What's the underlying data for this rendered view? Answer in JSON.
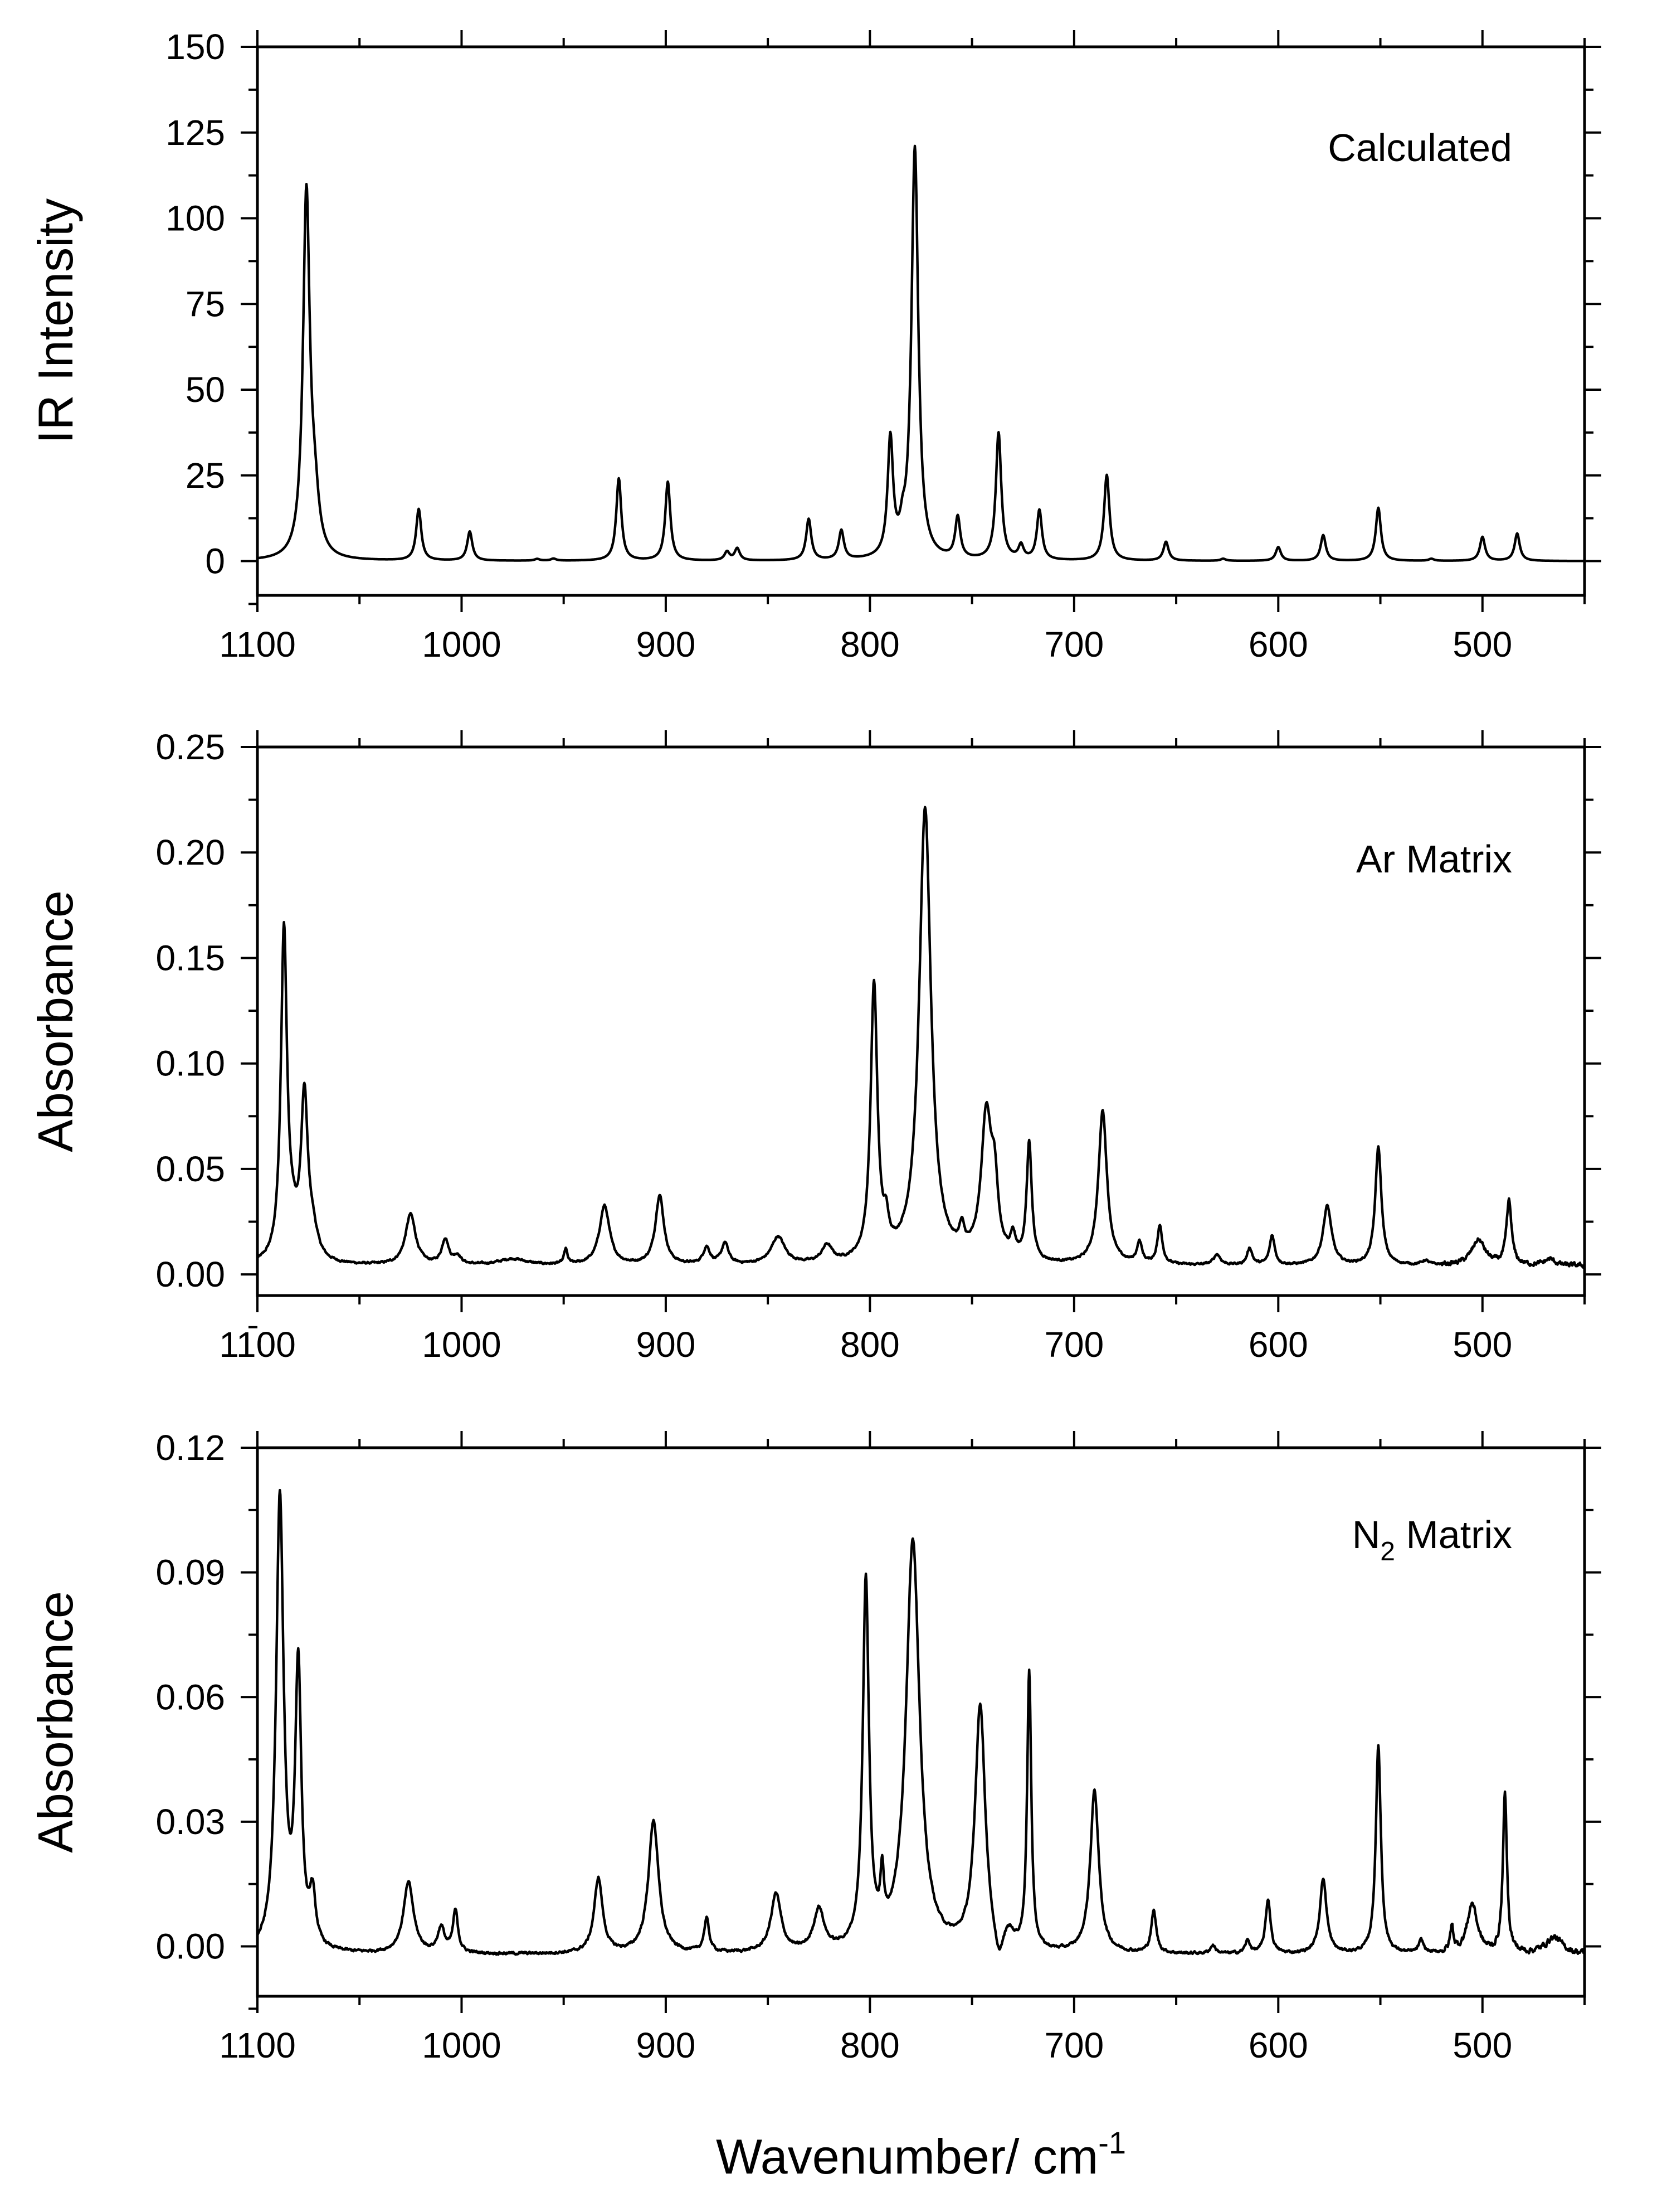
{
  "chart_data": [
    {
      "type": "line",
      "panel_label": "Calculated",
      "xlabel": "",
      "ylabel": "IR Intensity",
      "xlim": [
        1100,
        450
      ],
      "ylim": [
        -10,
        150
      ],
      "x_ticks": [
        1100,
        1000,
        900,
        800,
        700,
        600,
        500
      ],
      "x_tick_labels": [
        "1100",
        "1000",
        "900",
        "800",
        "700",
        "600",
        "500"
      ],
      "y_ticks": [
        0,
        25,
        50,
        75,
        100,
        125,
        150
      ],
      "y_tick_labels": [
        "0",
        "25",
        "50",
        "75",
        "100",
        "125",
        "150"
      ],
      "baseline": 0,
      "noise": 0,
      "peaks": [
        {
          "x": 1076,
          "y": 106,
          "w": 2.0
        },
        {
          "x": 1072,
          "y": 14,
          "w": 2.5
        },
        {
          "x": 1021,
          "y": 15,
          "w": 1.5
        },
        {
          "x": 996,
          "y": 8.5,
          "w": 1.5
        },
        {
          "x": 963,
          "y": 0.5,
          "w": 1.5
        },
        {
          "x": 955,
          "y": 0.6,
          "w": 1.5
        },
        {
          "x": 923,
          "y": 24,
          "w": 1.5
        },
        {
          "x": 899,
          "y": 23,
          "w": 1.5
        },
        {
          "x": 870,
          "y": 2.5,
          "w": 1.5
        },
        {
          "x": 865,
          "y": 3.5,
          "w": 1.5
        },
        {
          "x": 830,
          "y": 12,
          "w": 1.5
        },
        {
          "x": 814,
          "y": 8.5,
          "w": 1.5
        },
        {
          "x": 790,
          "y": 34,
          "w": 1.6
        },
        {
          "x": 784,
          "y": 5,
          "w": 1.5
        },
        {
          "x": 778,
          "y": 120,
          "w": 2.0
        },
        {
          "x": 757,
          "y": 12,
          "w": 1.5
        },
        {
          "x": 737,
          "y": 37,
          "w": 1.6
        },
        {
          "x": 726,
          "y": 4,
          "w": 1.5
        },
        {
          "x": 717,
          "y": 14.5,
          "w": 1.5
        },
        {
          "x": 684,
          "y": 25,
          "w": 1.6
        },
        {
          "x": 655,
          "y": 5.5,
          "w": 1.5
        },
        {
          "x": 627,
          "y": 0.6,
          "w": 1.5
        },
        {
          "x": 600,
          "y": 4,
          "w": 1.5
        },
        {
          "x": 578,
          "y": 7.5,
          "w": 1.5
        },
        {
          "x": 551,
          "y": 15.5,
          "w": 1.5
        },
        {
          "x": 525,
          "y": 0.6,
          "w": 1.5
        },
        {
          "x": 500,
          "y": 7,
          "w": 1.5
        },
        {
          "x": 483,
          "y": 8,
          "w": 1.5
        }
      ]
    },
    {
      "type": "line",
      "panel_label": "Ar Matrix",
      "xlabel": "",
      "ylabel": "Absorbance",
      "xlim": [
        1100,
        450
      ],
      "ylim": [
        -0.01,
        0.25
      ],
      "x_ticks": [
        1100,
        1000,
        900,
        800,
        700,
        600,
        500
      ],
      "x_tick_labels": [
        "1100",
        "1000",
        "900",
        "800",
        "700",
        "600",
        "500"
      ],
      "y_ticks": [
        0.0,
        0.05,
        0.1,
        0.15,
        0.2,
        0.25
      ],
      "y_tick_labels": [
        "0.00",
        "0.05",
        "0.10",
        "0.15",
        "0.20",
        "0.25"
      ],
      "baseline": 0.004,
      "noise": 0.0009,
      "peaks": [
        {
          "x": 1087,
          "y": 0.155,
          "w": 1.8
        },
        {
          "x": 1083,
          "y": 0.012,
          "w": 3.0
        },
        {
          "x": 1077,
          "y": 0.075,
          "w": 2.0
        },
        {
          "x": 1073,
          "y": 0.012,
          "w": 3.0
        },
        {
          "x": 1025,
          "y": 0.024,
          "w": 3.0
        },
        {
          "x": 1008,
          "y": 0.012,
          "w": 2.0
        },
        {
          "x": 1002,
          "y": 0.004,
          "w": 2.0
        },
        {
          "x": 975,
          "y": 0.003,
          "w": 8.0
        },
        {
          "x": 949,
          "y": 0.007,
          "w": 1.0
        },
        {
          "x": 930,
          "y": 0.028,
          "w": 3.0
        },
        {
          "x": 903,
          "y": 0.033,
          "w": 2.5
        },
        {
          "x": 880,
          "y": 0.008,
          "w": 2.0
        },
        {
          "x": 871,
          "y": 0.01,
          "w": 2.0
        },
        {
          "x": 845,
          "y": 0.013,
          "w": 4.0
        },
        {
          "x": 821,
          "y": 0.008,
          "w": 3.0
        },
        {
          "x": 798,
          "y": 0.13,
          "w": 2.0
        },
        {
          "x": 792,
          "y": 0.012,
          "w": 1.5
        },
        {
          "x": 773,
          "y": 0.215,
          "w": 3.5
        },
        {
          "x": 755,
          "y": 0.01,
          "w": 1.5
        },
        {
          "x": 743,
          "y": 0.068,
          "w": 3.0
        },
        {
          "x": 739,
          "y": 0.03,
          "w": 2.0
        },
        {
          "x": 730,
          "y": 0.01,
          "w": 1.5
        },
        {
          "x": 722,
          "y": 0.056,
          "w": 1.5
        },
        {
          "x": 686,
          "y": 0.073,
          "w": 2.5
        },
        {
          "x": 668,
          "y": 0.01,
          "w": 1.5
        },
        {
          "x": 658,
          "y": 0.018,
          "w": 1.5
        },
        {
          "x": 630,
          "y": 0.005,
          "w": 2.0
        },
        {
          "x": 614,
          "y": 0.008,
          "w": 1.5
        },
        {
          "x": 603,
          "y": 0.014,
          "w": 1.5
        },
        {
          "x": 576,
          "y": 0.028,
          "w": 2.5
        },
        {
          "x": 551,
          "y": 0.056,
          "w": 1.8
        },
        {
          "x": 528,
          "y": 0.002,
          "w": 2.0
        },
        {
          "x": 502,
          "y": 0.012,
          "w": 4.0
        },
        {
          "x": 487,
          "y": 0.03,
          "w": 1.5
        },
        {
          "x": 467,
          "y": 0.003,
          "w": 3.0
        }
      ]
    },
    {
      "type": "line",
      "panel_label": "N2 Matrix",
      "panel_label_base": "N",
      "panel_label_sub": "2",
      "panel_label_rest": " Matrix",
      "xlabel": "Wavenumber/ cm-1",
      "xlabel_main": "Wavenumber/ cm",
      "xlabel_sup": "-1",
      "ylabel": "Absorbance",
      "xlim": [
        1100,
        450
      ],
      "ylim": [
        -0.012,
        0.12
      ],
      "x_ticks": [
        1100,
        1000,
        900,
        800,
        700,
        600,
        500
      ],
      "x_tick_labels": [
        "1100",
        "1000",
        "900",
        "800",
        "700",
        "600",
        "500"
      ],
      "y_ticks": [
        0.0,
        0.03,
        0.06,
        0.09,
        0.12
      ],
      "y_tick_labels": [
        "0.00",
        "0.03",
        "0.06",
        "0.09",
        "0.12"
      ],
      "baseline": -0.002,
      "noise": 0.0006,
      "peaks": [
        {
          "x": 1089,
          "y": 0.109,
          "w": 2.2
        },
        {
          "x": 1080,
          "y": 0.067,
          "w": 1.8
        },
        {
          "x": 1073,
          "y": 0.012,
          "w": 1.8
        },
        {
          "x": 1026,
          "y": 0.017,
          "w": 3.0
        },
        {
          "x": 1010,
          "y": 0.006,
          "w": 2.0
        },
        {
          "x": 1003,
          "y": 0.01,
          "w": 1.5
        },
        {
          "x": 933,
          "y": 0.018,
          "w": 2.5
        },
        {
          "x": 906,
          "y": 0.032,
          "w": 3.0
        },
        {
          "x": 880,
          "y": 0.008,
          "w": 1.5
        },
        {
          "x": 846,
          "y": 0.014,
          "w": 3.0
        },
        {
          "x": 825,
          "y": 0.01,
          "w": 3.0
        },
        {
          "x": 802,
          "y": 0.088,
          "w": 1.8
        },
        {
          "x": 794,
          "y": 0.013,
          "w": 1.0
        },
        {
          "x": 779,
          "y": 0.099,
          "w": 4.0
        },
        {
          "x": 746,
          "y": 0.059,
          "w": 3.0
        },
        {
          "x": 737,
          "y": -0.007,
          "w": 2.5
        },
        {
          "x": 732,
          "y": 0.004,
          "w": 3.0
        },
        {
          "x": 722,
          "y": 0.067,
          "w": 1.2
        },
        {
          "x": 690,
          "y": 0.039,
          "w": 2.5
        },
        {
          "x": 661,
          "y": 0.01,
          "w": 1.5
        },
        {
          "x": 632,
          "y": 0.002,
          "w": 1.5
        },
        {
          "x": 615,
          "y": 0.003,
          "w": 1.5
        },
        {
          "x": 605,
          "y": 0.013,
          "w": 1.5
        },
        {
          "x": 578,
          "y": 0.018,
          "w": 2.0
        },
        {
          "x": 551,
          "y": 0.05,
          "w": 1.5
        },
        {
          "x": 530,
          "y": 0.003,
          "w": 1.5
        },
        {
          "x": 515,
          "y": 0.006,
          "w": 1.0
        },
        {
          "x": 505,
          "y": 0.012,
          "w": 3.0
        },
        {
          "x": 489,
          "y": 0.038,
          "w": 1.2
        },
        {
          "x": 465,
          "y": 0.004,
          "w": 5.0
        }
      ]
    }
  ]
}
